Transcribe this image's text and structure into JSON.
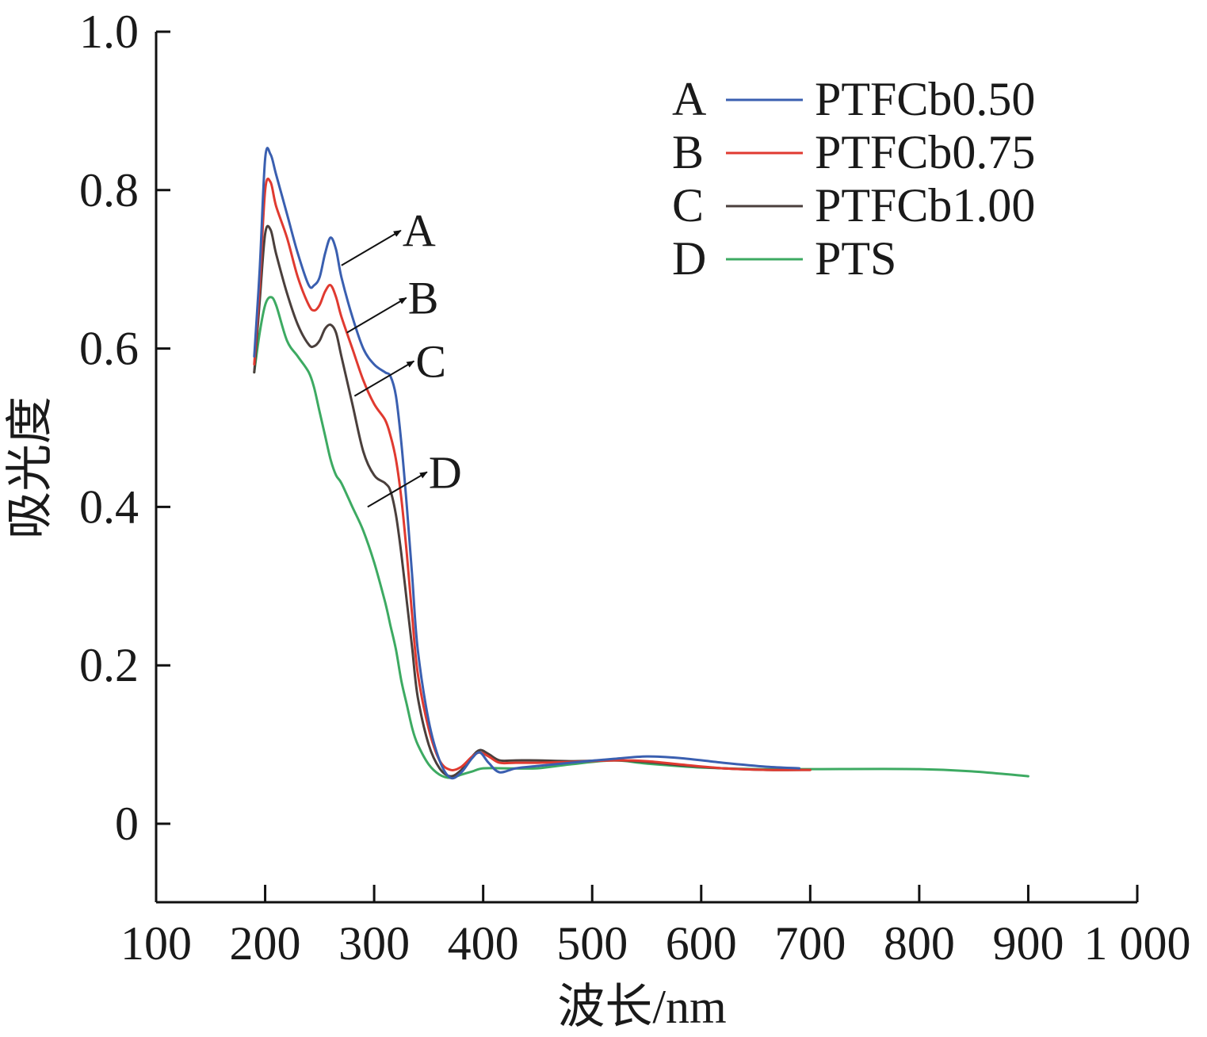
{
  "chart_data": {
    "type": "line",
    "title": "",
    "xlabel": "波长/nm",
    "ylabel": "吸光度",
    "xlim": [
      100,
      1000
    ],
    "ylim": [
      -0.1,
      1.0
    ],
    "x_ticks": [
      100,
      200,
      300,
      400,
      500,
      600,
      700,
      800,
      900,
      1000
    ],
    "x_tick_labels": [
      "100",
      "200",
      "300",
      "400",
      "500",
      "600",
      "700",
      "800",
      "900",
      "1 000"
    ],
    "y_ticks": [
      0,
      0.2,
      0.4,
      0.6,
      0.8,
      1.0
    ],
    "y_tick_labels": [
      "0",
      "0.2",
      "0.4",
      "0.6",
      "0.8",
      "1.0"
    ],
    "grid": false,
    "legend_position": "top-right",
    "series": [
      {
        "key": "A",
        "name": "PTFCb0.50",
        "color": "#3a5fb0",
        "x": [
          190,
          195,
          200,
          205,
          210,
          220,
          230,
          240,
          245,
          250,
          255,
          260,
          265,
          270,
          280,
          290,
          300,
          310,
          315,
          320,
          325,
          330,
          335,
          340,
          350,
          360,
          370,
          380,
          390,
          397,
          405,
          415,
          430,
          450,
          480,
          520,
          550,
          580,
          620,
          660,
          690
        ],
        "y": [
          0.59,
          0.7,
          0.84,
          0.845,
          0.82,
          0.77,
          0.72,
          0.68,
          0.68,
          0.69,
          0.72,
          0.74,
          0.725,
          0.69,
          0.64,
          0.6,
          0.58,
          0.57,
          0.565,
          0.54,
          0.48,
          0.4,
          0.31,
          0.22,
          0.13,
          0.08,
          0.058,
          0.065,
          0.083,
          0.09,
          0.077,
          0.065,
          0.07,
          0.073,
          0.077,
          0.082,
          0.085,
          0.083,
          0.077,
          0.072,
          0.07
        ]
      },
      {
        "key": "B",
        "name": "PTFCb0.75",
        "color": "#e03a30",
        "x": [
          190,
          195,
          200,
          205,
          210,
          220,
          230,
          240,
          245,
          250,
          255,
          260,
          265,
          270,
          280,
          290,
          300,
          310,
          315,
          320,
          325,
          330,
          335,
          340,
          350,
          360,
          370,
          380,
          390,
          397,
          405,
          415,
          430,
          450,
          480,
          520,
          550,
          580,
          620,
          660,
          700
        ],
        "y": [
          0.58,
          0.68,
          0.8,
          0.81,
          0.78,
          0.74,
          0.69,
          0.655,
          0.648,
          0.655,
          0.672,
          0.68,
          0.665,
          0.64,
          0.6,
          0.56,
          0.53,
          0.51,
          0.49,
          0.46,
          0.41,
          0.34,
          0.26,
          0.19,
          0.12,
          0.08,
          0.068,
          0.072,
          0.085,
          0.09,
          0.085,
          0.077,
          0.077,
          0.077,
          0.078,
          0.08,
          0.079,
          0.075,
          0.07,
          0.068,
          0.068
        ]
      },
      {
        "key": "C",
        "name": "PTFCb1.00",
        "color": "#4a3f3c",
        "x": [
          190,
          195,
          200,
          205,
          210,
          220,
          230,
          240,
          245,
          250,
          255,
          260,
          265,
          270,
          280,
          290,
          300,
          310,
          315,
          320,
          325,
          330,
          335,
          340,
          350,
          360,
          370,
          380,
          390,
          397,
          405,
          415,
          430,
          450,
          480,
          520,
          550,
          580,
          620,
          660,
          700
        ],
        "y": [
          0.57,
          0.66,
          0.745,
          0.75,
          0.72,
          0.67,
          0.63,
          0.605,
          0.603,
          0.61,
          0.625,
          0.63,
          0.62,
          0.59,
          0.53,
          0.47,
          0.44,
          0.43,
          0.42,
          0.39,
          0.34,
          0.28,
          0.22,
          0.16,
          0.1,
          0.07,
          0.06,
          0.068,
          0.085,
          0.093,
          0.088,
          0.08,
          0.08,
          0.08,
          0.079,
          0.08,
          0.078,
          0.074,
          0.07,
          0.068,
          0.068
        ]
      },
      {
        "key": "D",
        "name": "PTS",
        "color": "#3daa62",
        "x": [
          190,
          195,
          200,
          205,
          210,
          220,
          230,
          240,
          245,
          250,
          255,
          260,
          265,
          270,
          280,
          290,
          300,
          310,
          315,
          320,
          325,
          330,
          335,
          340,
          350,
          360,
          370,
          380,
          390,
          400,
          420,
          450,
          480,
          520,
          550,
          600,
          650,
          700,
          800,
          850,
          900
        ],
        "y": [
          0.57,
          0.62,
          0.655,
          0.665,
          0.655,
          0.61,
          0.59,
          0.57,
          0.55,
          0.52,
          0.49,
          0.46,
          0.44,
          0.43,
          0.4,
          0.37,
          0.33,
          0.28,
          0.25,
          0.22,
          0.18,
          0.15,
          0.12,
          0.1,
          0.075,
          0.062,
          0.058,
          0.062,
          0.066,
          0.07,
          0.07,
          0.07,
          0.075,
          0.08,
          0.076,
          0.071,
          0.069,
          0.069,
          0.069,
          0.066,
          0.06
        ]
      }
    ],
    "annotations": [
      {
        "label": "A",
        "at_x": 270,
        "at_y": 0.705
      },
      {
        "label": "B",
        "at_x": 275,
        "at_y": 0.62
      },
      {
        "label": "C",
        "at_x": 282,
        "at_y": 0.54
      },
      {
        "label": "D",
        "at_x": 294,
        "at_y": 0.4
      }
    ]
  }
}
